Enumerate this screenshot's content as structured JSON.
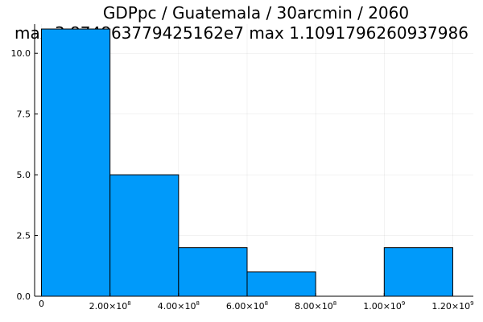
{
  "chart_data": {
    "type": "bar",
    "title": "GDPpc / Guatemala / 30arcmin / 2060",
    "subtitle": "max 3.874863779425162e7  max 1.1091796260937986",
    "xlabel": "",
    "ylabel": "",
    "bins": [
      {
        "start": 0,
        "end": 200000000,
        "count": 11
      },
      {
        "start": 200000000,
        "end": 400000000,
        "count": 5
      },
      {
        "start": 400000000,
        "end": 600000000,
        "count": 2
      },
      {
        "start": 600000000,
        "end": 800000000,
        "count": 1
      },
      {
        "start": 800000000,
        "end": 1000000000,
        "count": 0
      },
      {
        "start": 1000000000,
        "end": 1200000000,
        "count": 2
      }
    ],
    "xlim": [
      -20000000,
      1260000000
    ],
    "ylim": [
      0,
      11.2
    ],
    "x_ticks": [
      {
        "value": 0,
        "label": "0",
        "mantissa": "",
        "exponent": ""
      },
      {
        "value": 200000000,
        "label": "",
        "mantissa": "2.00×10",
        "exponent": "8"
      },
      {
        "value": 400000000,
        "label": "",
        "mantissa": "4.00×10",
        "exponent": "8"
      },
      {
        "value": 600000000,
        "label": "",
        "mantissa": "6.00×10",
        "exponent": "8"
      },
      {
        "value": 800000000,
        "label": "",
        "mantissa": "8.00×10",
        "exponent": "8"
      },
      {
        "value": 1000000000,
        "label": "",
        "mantissa": "1.00×10",
        "exponent": "9"
      },
      {
        "value": 1200000000,
        "label": "",
        "mantissa": "1.20×10",
        "exponent": "9"
      }
    ],
    "y_ticks": [
      {
        "value": 0,
        "label": "0.0"
      },
      {
        "value": 2.5,
        "label": "2.5"
      },
      {
        "value": 5,
        "label": "5.0"
      },
      {
        "value": 7.5,
        "label": "7.5"
      },
      {
        "value": 10,
        "label": "10.0"
      }
    ],
    "grid": true,
    "legend": "none",
    "colors": {
      "bar_fill": "#009AFA",
      "bar_stroke": "#000000"
    }
  }
}
